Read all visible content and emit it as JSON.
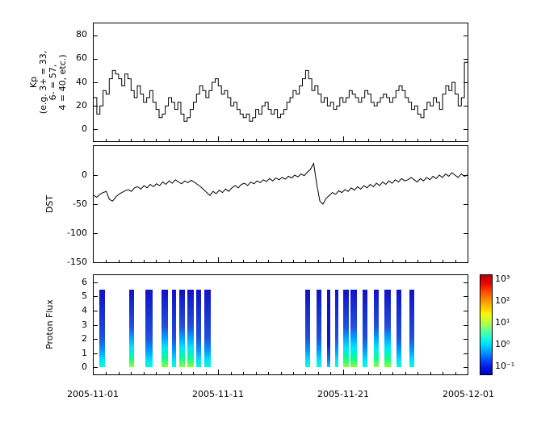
{
  "figure": {
    "background": "#ffffff",
    "axis_color": "#000000",
    "line_color": "#000000"
  },
  "x_axis": {
    "tick_labels": [
      "2005-11-01",
      "2005-11-11",
      "2005-11-21",
      "2005-12-01"
    ],
    "span_days": 30
  },
  "panels": {
    "kp": {
      "ylabel_lines": "Kp\n(e.g. 3+ = 33,\n6- = 57,\n4 = 40, etc.)",
      "yticks": [
        80,
        60,
        40,
        20,
        0
      ]
    },
    "dst": {
      "ylabel": "DST",
      "yticks": [
        0,
        -50,
        -100,
        -150
      ]
    },
    "proton": {
      "ylabel": "Proton Flux",
      "yticks": [
        6,
        5,
        4,
        3,
        2,
        1,
        0
      ]
    }
  },
  "colorbar": {
    "tick_labels": [
      "10³",
      "10²",
      "10¹",
      "10⁰",
      "10⁻¹"
    ],
    "colors_top_to_bottom": [
      "#b40000",
      "#e80000",
      "#ff3c00",
      "#ff7d00",
      "#ffb900",
      "#fff200",
      "#c8ff32",
      "#78ff82",
      "#28ffc8",
      "#00e1ff",
      "#00a0ff",
      "#0055ff",
      "#0018e6",
      "#0000c8"
    ]
  },
  "proton_bar_gradients": {
    "low": "#00d0ff 0%, #1e6ee6 10%, #1414cd 30%, #0f0fc0 100%",
    "mid": "#00ffd9 0%, #00dcff 10%, #0096ff 22%, #1e50dc 38%, #1111c8 100%",
    "high": "#8cff3c 0%, #00ff96 12%, #00e6ff 25%, #00a0ff 38%, #2350dc 52%, #1111c8 100%"
  },
  "chart_data": [
    {
      "type": "line",
      "name": "Kp index",
      "ylabel": "Kp (e.g. 3+ = 33, 6- = 57, 4 = 40, etc.)",
      "x_start": "2005-11-01",
      "x_end": "2005-12-01",
      "x_tick_labels": [
        "2005-11-01",
        "2005-11-11",
        "2005-11-21",
        "2005-12-01"
      ],
      "points_per_day": 4,
      "line_style": "step",
      "ylim": [
        -10,
        90
      ],
      "yticks": [
        0,
        20,
        40,
        60,
        80
      ],
      "values": [
        27,
        13,
        20,
        33,
        30,
        43,
        50,
        47,
        43,
        37,
        47,
        43,
        33,
        27,
        37,
        30,
        23,
        27,
        33,
        23,
        17,
        10,
        13,
        20,
        27,
        23,
        17,
        23,
        13,
        7,
        10,
        17,
        23,
        30,
        37,
        33,
        27,
        33,
        40,
        43,
        37,
        30,
        33,
        27,
        20,
        23,
        17,
        13,
        10,
        13,
        7,
        10,
        17,
        13,
        20,
        23,
        17,
        13,
        17,
        10,
        13,
        17,
        23,
        27,
        33,
        30,
        37,
        43,
        50,
        43,
        33,
        37,
        30,
        23,
        27,
        20,
        23,
        17,
        20,
        27,
        23,
        27,
        33,
        30,
        27,
        23,
        27,
        33,
        30,
        23,
        20,
        23,
        27,
        30,
        27,
        23,
        27,
        33,
        37,
        33,
        27,
        23,
        17,
        20,
        13,
        10,
        17,
        23,
        20,
        27,
        23,
        17,
        30,
        37,
        33,
        40,
        30,
        20,
        27,
        57
      ]
    },
    {
      "type": "line",
      "name": "DST index",
      "ylabel": "DST",
      "x_start": "2005-11-01",
      "x_end": "2005-12-01",
      "x_tick_labels": [
        "2005-11-01",
        "2005-11-11",
        "2005-11-21",
        "2005-12-01"
      ],
      "points_per_day": 4,
      "line_style": "linear",
      "ylim": [
        -150,
        50
      ],
      "yticks": [
        -150,
        -100,
        -50,
        0
      ],
      "values": [
        -35,
        -38,
        -33,
        -30,
        -28,
        -42,
        -45,
        -38,
        -33,
        -30,
        -27,
        -25,
        -28,
        -22,
        -20,
        -24,
        -18,
        -22,
        -16,
        -20,
        -15,
        -18,
        -12,
        -16,
        -10,
        -14,
        -8,
        -12,
        -15,
        -10,
        -13,
        -9,
        -12,
        -16,
        -20,
        -25,
        -30,
        -35,
        -28,
        -32,
        -26,
        -30,
        -24,
        -28,
        -22,
        -18,
        -22,
        -16,
        -14,
        -18,
        -12,
        -15,
        -10,
        -13,
        -8,
        -11,
        -6,
        -10,
        -5,
        -8,
        -4,
        -7,
        -2,
        -5,
        0,
        -3,
        2,
        -1,
        5,
        10,
        20,
        -15,
        -45,
        -50,
        -40,
        -35,
        -30,
        -33,
        -27,
        -30,
        -25,
        -28,
        -22,
        -26,
        -20,
        -24,
        -18,
        -22,
        -16,
        -20,
        -14,
        -18,
        -12,
        -16,
        -10,
        -14,
        -8,
        -12,
        -6,
        -10,
        -8,
        -4,
        -8,
        -12,
        -6,
        -10,
        -4,
        -8,
        -2,
        -6,
        0,
        -4,
        2,
        -2,
        4,
        0,
        -4,
        2,
        -2,
        0
      ]
    },
    {
      "type": "heatmap",
      "name": "Proton Flux",
      "ylabel": "Proton Flux",
      "x_start": "2005-11-01",
      "x_end": "2005-12-01",
      "x_tick_labels": [
        "2005-11-01",
        "2005-11-11",
        "2005-11-21",
        "2005-12-01"
      ],
      "ylim": [
        -0.5,
        6.5
      ],
      "yticks": [
        0,
        1,
        2,
        3,
        4,
        5,
        6
      ],
      "bar_y_span": [
        0,
        5.5
      ],
      "colorbar": {
        "scale": "log",
        "range": [
          0.1,
          1000
        ],
        "tick_labels": [
          "10^3",
          "10^2",
          "10^1",
          "10^0",
          "10^-1"
        ],
        "orientation": "vertical"
      },
      "bars": [
        {
          "start_day": 0.45,
          "width_days": 0.45,
          "level": "mid"
        },
        {
          "start_day": 2.85,
          "width_days": 0.4,
          "level": "high"
        },
        {
          "start_day": 4.15,
          "width_days": 0.55,
          "level": "mid"
        },
        {
          "start_day": 5.45,
          "width_days": 0.5,
          "level": "high"
        },
        {
          "start_day": 6.25,
          "width_days": 0.35,
          "level": "mid"
        },
        {
          "start_day": 6.85,
          "width_days": 0.5,
          "level": "high"
        },
        {
          "start_day": 7.5,
          "width_days": 0.55,
          "level": "high"
        },
        {
          "start_day": 8.2,
          "width_days": 0.45,
          "level": "mid"
        },
        {
          "start_day": 8.85,
          "width_days": 0.55,
          "level": "mid"
        },
        {
          "start_day": 16.95,
          "width_days": 0.4,
          "level": "mid"
        },
        {
          "start_day": 17.85,
          "width_days": 0.4,
          "level": "mid"
        },
        {
          "start_day": 18.7,
          "width_days": 0.3,
          "level": "low"
        },
        {
          "start_day": 19.35,
          "width_days": 0.3,
          "level": "mid"
        },
        {
          "start_day": 20.0,
          "width_days": 0.45,
          "level": "high"
        },
        {
          "start_day": 20.6,
          "width_days": 0.5,
          "level": "high"
        },
        {
          "start_day": 21.55,
          "width_days": 0.4,
          "level": "mid"
        },
        {
          "start_day": 22.45,
          "width_days": 0.4,
          "level": "high"
        },
        {
          "start_day": 23.35,
          "width_days": 0.5,
          "level": "high"
        },
        {
          "start_day": 24.3,
          "width_days": 0.4,
          "level": "mid"
        },
        {
          "start_day": 25.3,
          "width_days": 0.45,
          "level": "mid"
        }
      ]
    }
  ]
}
